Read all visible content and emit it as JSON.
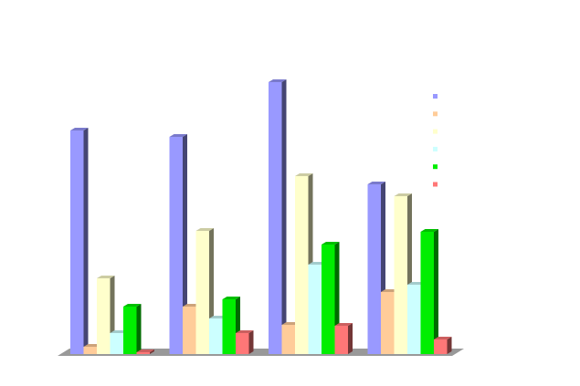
{
  "chart_data": {
    "type": "bar3d",
    "categories": [
      null,
      null,
      null,
      null
    ],
    "series": [
      {
        "color": "#9999ff",
        "values": [
          245,
          238,
          298,
          186
        ]
      },
      {
        "color": "#ffcc99",
        "values": [
          8,
          52,
          32,
          68
        ]
      },
      {
        "color": "#ffffcc",
        "values": [
          83,
          135,
          195,
          173
        ]
      },
      {
        "color": "#ccffff",
        "values": [
          23,
          39,
          98,
          76
        ]
      },
      {
        "color": "#00ee00",
        "values": [
          52,
          60,
          120,
          134
        ]
      },
      {
        "color": "#ff7777",
        "values": [
          2,
          23,
          31,
          16
        ]
      }
    ],
    "legend": "right"
  }
}
